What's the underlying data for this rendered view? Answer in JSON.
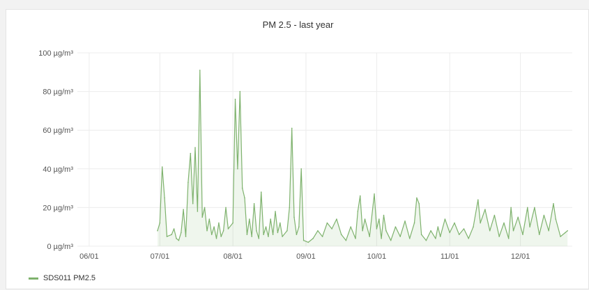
{
  "panel": {
    "title": "PM 2.5 - last year"
  },
  "chart_data": {
    "type": "area",
    "title": "PM 2.5 - last year",
    "xlabel": "",
    "ylabel": "",
    "y_unit": "µg/m³",
    "ylim": [
      0,
      100
    ],
    "y_ticks": [
      0,
      20,
      40,
      60,
      80,
      100
    ],
    "y_tick_labels": [
      "0 µg/m³",
      "20 µg/m³",
      "40 µg/m³",
      "60 µg/m³",
      "80 µg/m³",
      "100 µg/m³"
    ],
    "x_ticks": [
      "06/01",
      "07/01",
      "08/01",
      "09/01",
      "10/01",
      "11/01",
      "12/01"
    ],
    "xlim": [
      "2019-05-27",
      "2019-12-23"
    ],
    "grid": true,
    "legend_position": "bottom-left",
    "series": [
      {
        "name": "SDS011 PM2.5",
        "color": "#7eb26d",
        "points": [
          [
            "2019-06-30",
            8
          ],
          [
            "2019-07-01",
            12
          ],
          [
            "2019-07-02",
            41
          ],
          [
            "2019-07-03",
            25
          ],
          [
            "2019-07-04",
            5
          ],
          [
            "2019-07-06",
            6
          ],
          [
            "2019-07-07",
            9
          ],
          [
            "2019-07-08",
            4
          ],
          [
            "2019-07-09",
            3
          ],
          [
            "2019-07-10",
            7
          ],
          [
            "2019-07-11",
            19
          ],
          [
            "2019-07-12",
            5
          ],
          [
            "2019-07-13",
            33
          ],
          [
            "2019-07-14",
            48
          ],
          [
            "2019-07-15",
            22
          ],
          [
            "2019-07-16",
            51
          ],
          [
            "2019-07-17",
            18
          ],
          [
            "2019-07-18",
            91
          ],
          [
            "2019-07-19",
            15
          ],
          [
            "2019-07-20",
            20
          ],
          [
            "2019-07-21",
            8
          ],
          [
            "2019-07-22",
            14
          ],
          [
            "2019-07-23",
            6
          ],
          [
            "2019-07-24",
            10
          ],
          [
            "2019-07-25",
            4
          ],
          [
            "2019-07-26",
            12
          ],
          [
            "2019-07-27",
            5
          ],
          [
            "2019-07-28",
            8
          ],
          [
            "2019-07-29",
            20
          ],
          [
            "2019-07-30",
            9
          ],
          [
            "2019-08-01",
            12
          ],
          [
            "2019-08-02",
            76
          ],
          [
            "2019-08-03",
            40
          ],
          [
            "2019-08-04",
            80
          ],
          [
            "2019-08-05",
            30
          ],
          [
            "2019-08-06",
            25
          ],
          [
            "2019-08-07",
            6
          ],
          [
            "2019-08-08",
            14
          ],
          [
            "2019-08-09",
            5
          ],
          [
            "2019-08-10",
            22
          ],
          [
            "2019-08-11",
            8
          ],
          [
            "2019-08-12",
            4
          ],
          [
            "2019-08-13",
            28
          ],
          [
            "2019-08-14",
            6
          ],
          [
            "2019-08-15",
            10
          ],
          [
            "2019-08-16",
            5
          ],
          [
            "2019-08-17",
            14
          ],
          [
            "2019-08-18",
            6
          ],
          [
            "2019-08-19",
            18
          ],
          [
            "2019-08-20",
            7
          ],
          [
            "2019-08-21",
            12
          ],
          [
            "2019-08-22",
            5
          ],
          [
            "2019-08-24",
            8
          ],
          [
            "2019-08-25",
            20
          ],
          [
            "2019-08-26",
            61
          ],
          [
            "2019-08-27",
            15
          ],
          [
            "2019-08-28",
            6
          ],
          [
            "2019-08-29",
            10
          ],
          [
            "2019-08-30",
            40
          ],
          [
            "2019-08-31",
            3
          ],
          [
            "2019-09-02",
            2
          ],
          [
            "2019-09-04",
            4
          ],
          [
            "2019-09-06",
            8
          ],
          [
            "2019-09-08",
            5
          ],
          [
            "2019-09-10",
            12
          ],
          [
            "2019-09-12",
            9
          ],
          [
            "2019-09-14",
            14
          ],
          [
            "2019-09-16",
            6
          ],
          [
            "2019-09-18",
            3
          ],
          [
            "2019-09-20",
            10
          ],
          [
            "2019-09-22",
            4
          ],
          [
            "2019-09-23",
            18
          ],
          [
            "2019-09-24",
            26
          ],
          [
            "2019-09-25",
            8
          ],
          [
            "2019-09-26",
            14
          ],
          [
            "2019-09-28",
            5
          ],
          [
            "2019-09-30",
            27
          ],
          [
            "2019-10-01",
            9
          ],
          [
            "2019-10-02",
            14
          ],
          [
            "2019-10-03",
            4
          ],
          [
            "2019-10-04",
            16
          ],
          [
            "2019-10-05",
            8
          ],
          [
            "2019-10-07",
            3
          ],
          [
            "2019-10-09",
            10
          ],
          [
            "2019-10-11",
            5
          ],
          [
            "2019-10-13",
            13
          ],
          [
            "2019-10-15",
            4
          ],
          [
            "2019-10-17",
            12
          ],
          [
            "2019-10-18",
            25
          ],
          [
            "2019-10-19",
            22
          ],
          [
            "2019-10-20",
            6
          ],
          [
            "2019-10-22",
            3
          ],
          [
            "2019-10-24",
            8
          ],
          [
            "2019-10-26",
            4
          ],
          [
            "2019-10-27",
            10
          ],
          [
            "2019-10-28",
            5
          ],
          [
            "2019-10-30",
            14
          ],
          [
            "2019-11-01",
            7
          ],
          [
            "2019-11-03",
            12
          ],
          [
            "2019-11-05",
            6
          ],
          [
            "2019-11-07",
            9
          ],
          [
            "2019-11-09",
            4
          ],
          [
            "2019-11-11",
            10
          ],
          [
            "2019-11-13",
            24
          ],
          [
            "2019-11-14",
            12
          ],
          [
            "2019-11-16",
            19
          ],
          [
            "2019-11-18",
            8
          ],
          [
            "2019-11-20",
            16
          ],
          [
            "2019-11-22",
            5
          ],
          [
            "2019-11-24",
            12
          ],
          [
            "2019-11-26",
            4
          ],
          [
            "2019-11-27",
            20
          ],
          [
            "2019-11-28",
            8
          ],
          [
            "2019-11-30",
            15
          ],
          [
            "2019-12-02",
            6
          ],
          [
            "2019-12-04",
            20
          ],
          [
            "2019-12-05",
            10
          ],
          [
            "2019-12-07",
            20
          ],
          [
            "2019-12-09",
            6
          ],
          [
            "2019-12-11",
            16
          ],
          [
            "2019-12-13",
            8
          ],
          [
            "2019-12-15",
            22
          ],
          [
            "2019-12-16",
            14
          ],
          [
            "2019-12-18",
            5
          ],
          [
            "2019-12-20",
            7
          ],
          [
            "2019-12-21",
            8
          ]
        ]
      }
    ]
  },
  "legend": {
    "label": "SDS011 PM2.5"
  }
}
